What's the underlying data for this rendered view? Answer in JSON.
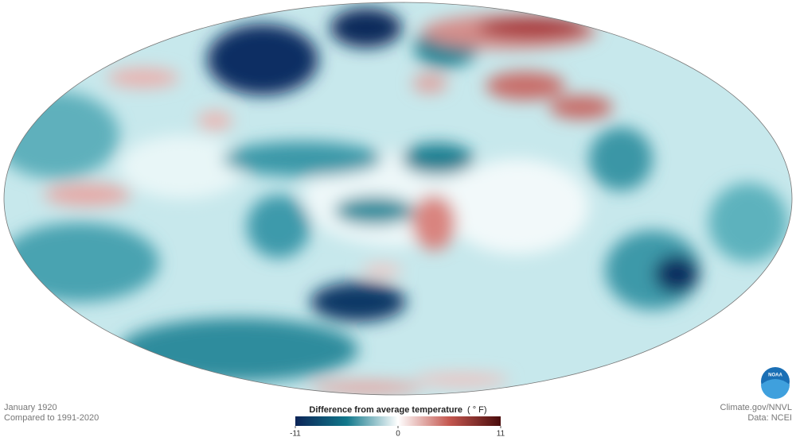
{
  "map": {
    "date": "January 1920",
    "baseline": "Compared to 1991-2020"
  },
  "legend": {
    "title": "Difference from average temperature",
    "unit": "( ° F)",
    "lim": [
      -11,
      11
    ],
    "ticks": [
      -11,
      0,
      11
    ],
    "colors": [
      "#0c2457",
      "#11788b",
      "#ffffff",
      "#c4574f",
      "#4a0c0c"
    ]
  },
  "credits": {
    "source": "Climate.gov/NNVL",
    "data": "Data: NCEI",
    "logo": "NOAA"
  }
}
